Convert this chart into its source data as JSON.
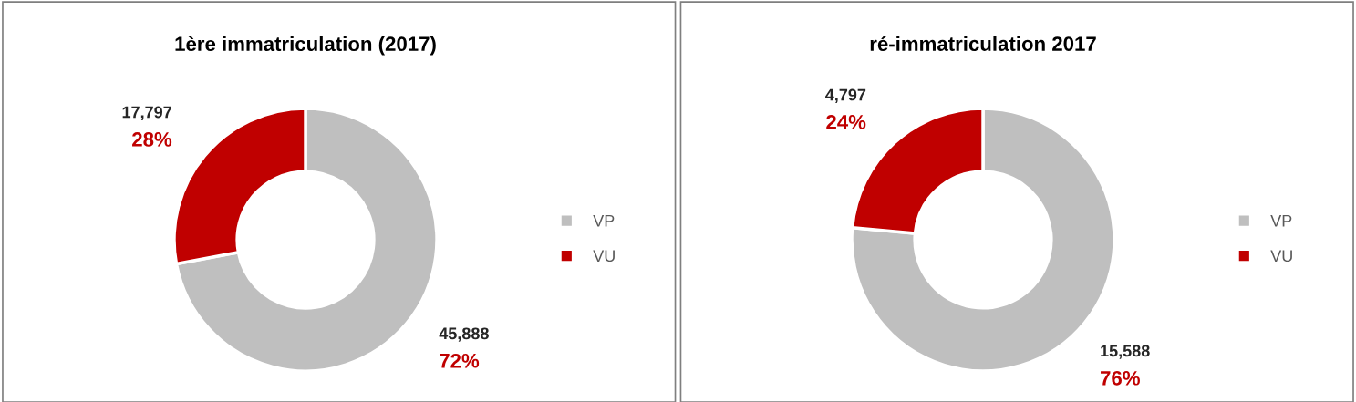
{
  "chart_data": [
    {
      "type": "donut",
      "title": "1ère immatriculation (2017)",
      "categories": [
        "VP",
        "VU"
      ],
      "values": [
        45888,
        17797
      ],
      "colors": [
        "#bfbfbf",
        "#c00000"
      ],
      "value_labels": [
        "45,888",
        "17,797"
      ],
      "annotations": [
        {
          "text": "72%",
          "x": "VP"
        },
        {
          "text": "28%",
          "x": "VU"
        }
      ],
      "legend": "right"
    },
    {
      "type": "donut",
      "title": "ré-immatriculation 2017",
      "categories": [
        "VP",
        "VU"
      ],
      "values": [
        15588,
        4797
      ],
      "colors": [
        "#bfbfbf",
        "#c00000"
      ],
      "value_labels": [
        "15,588",
        "4,797"
      ],
      "annotations": [
        {
          "text": "76%",
          "x": "VP"
        },
        {
          "text": "24%",
          "x": "VU"
        }
      ],
      "legend": "right"
    }
  ]
}
